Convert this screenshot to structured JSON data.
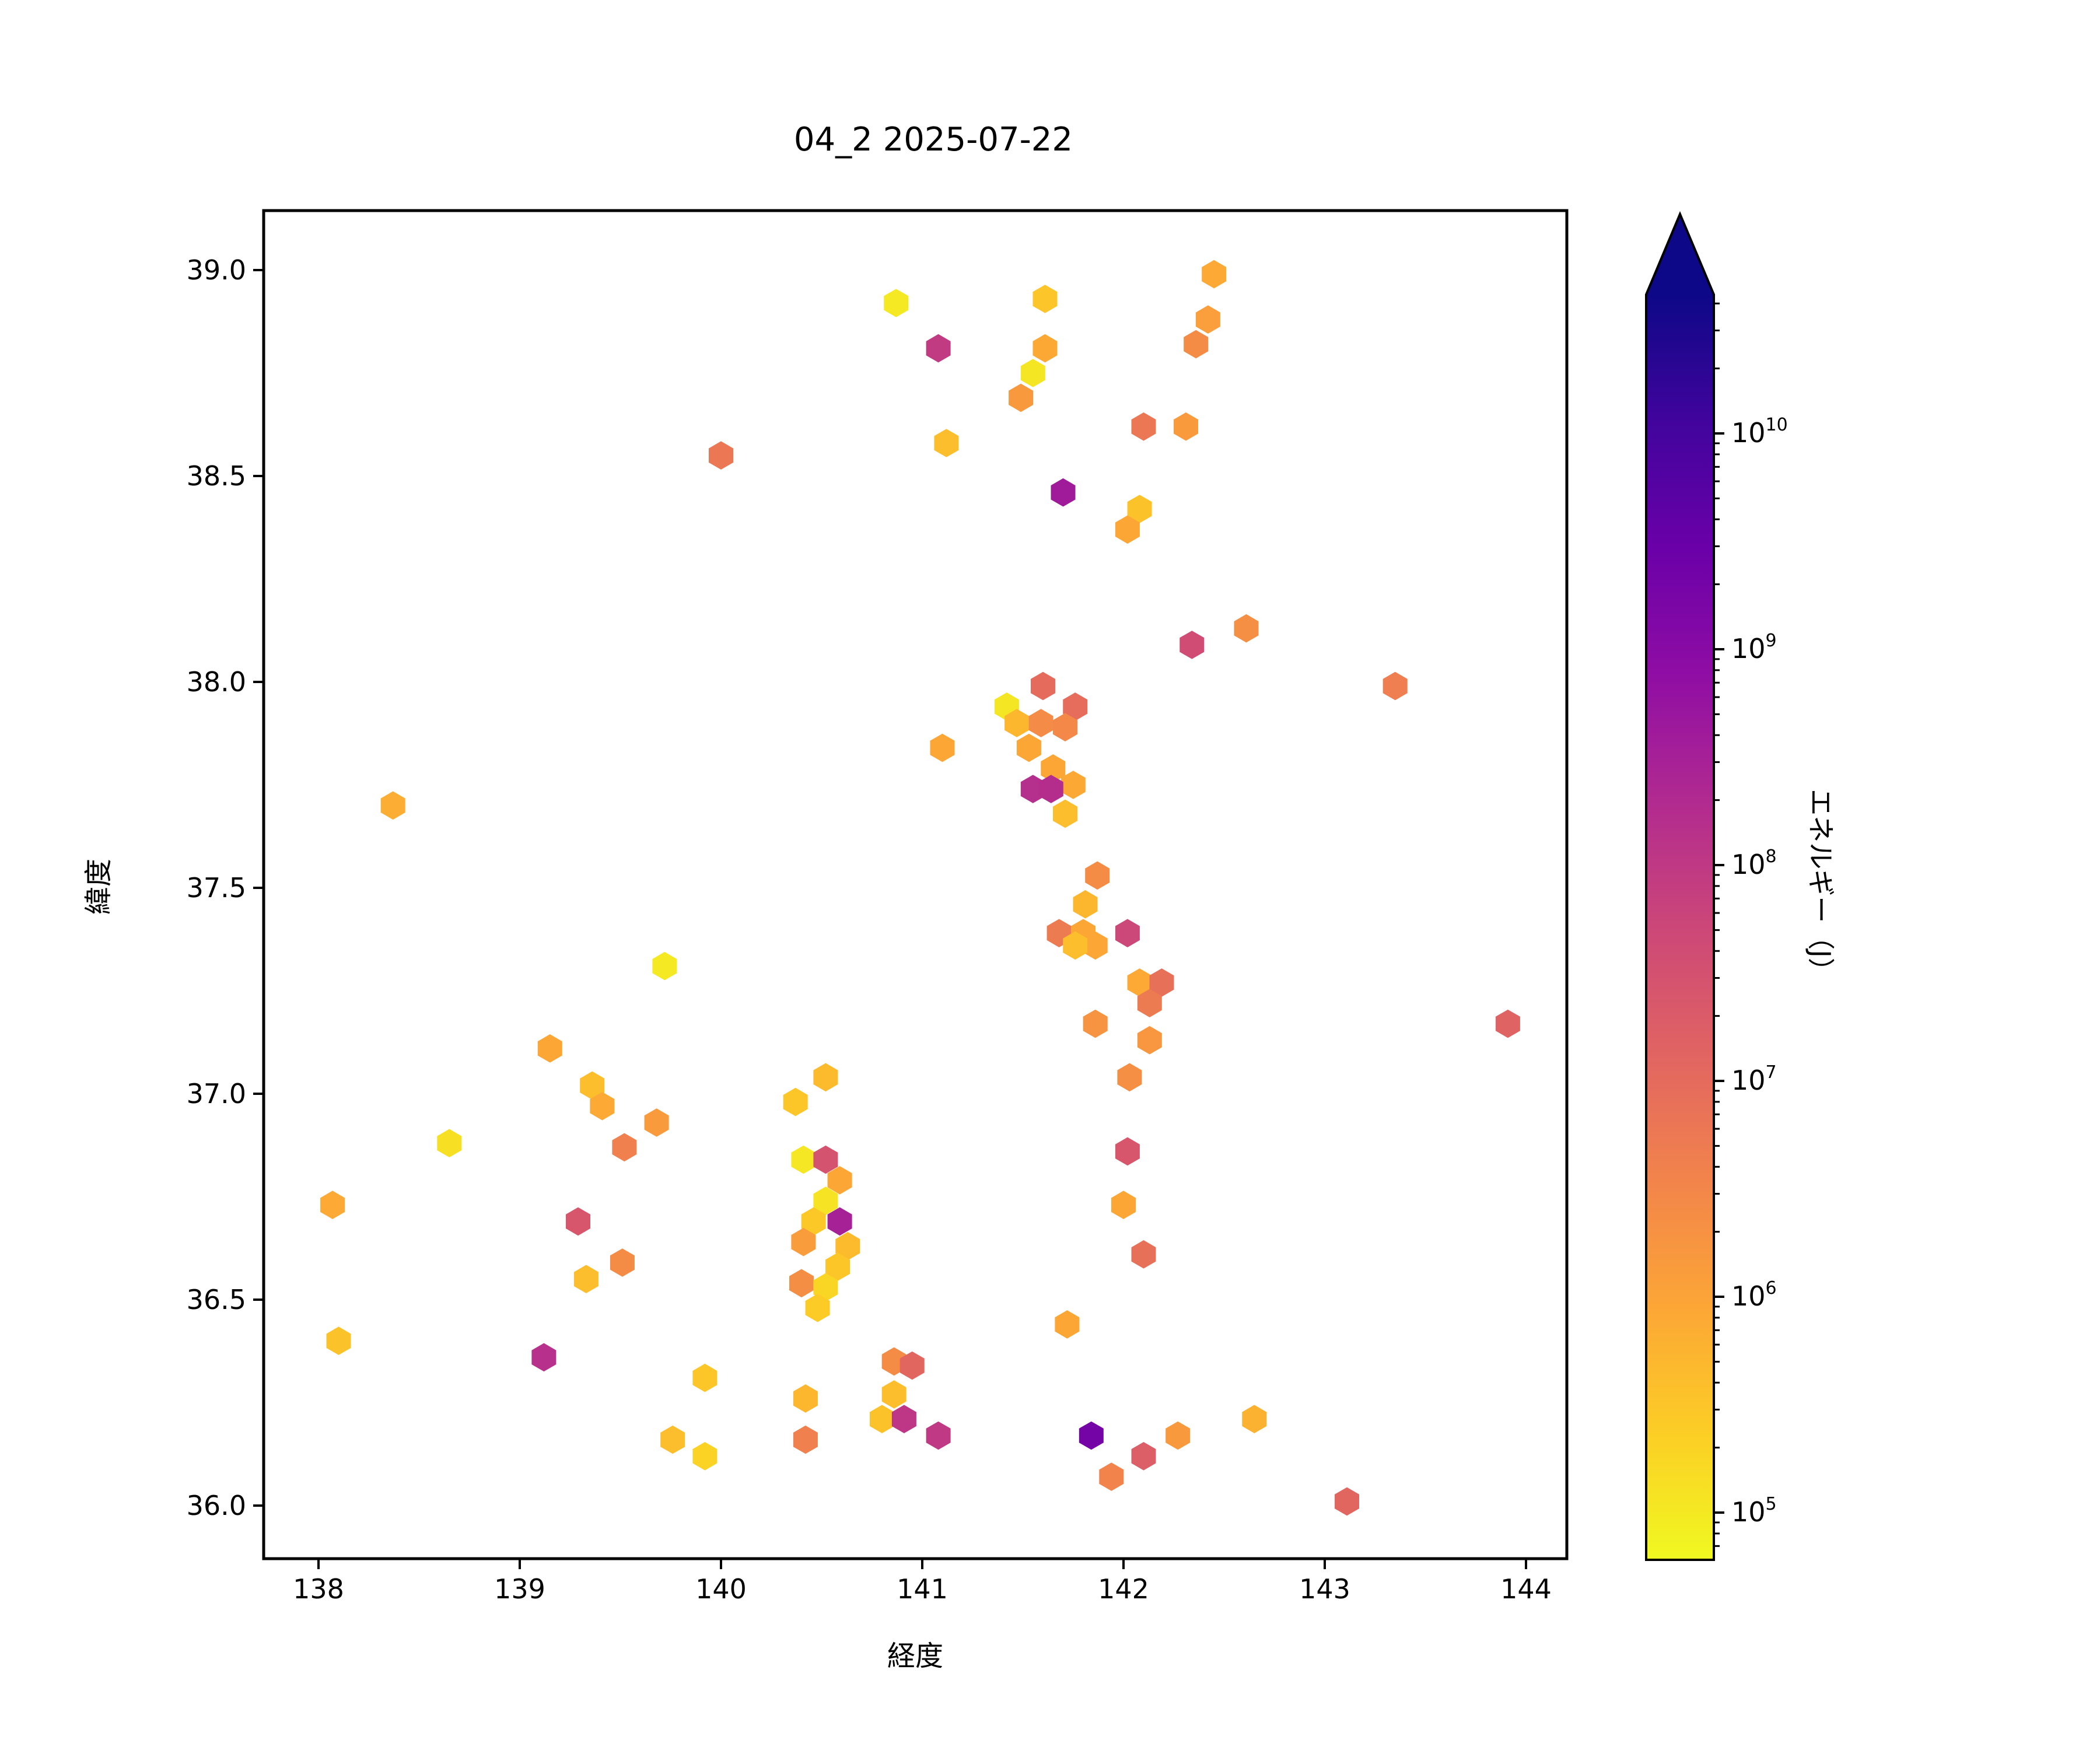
{
  "title": "04_2 2025-07-22",
  "axes": {
    "xlabel": "経度",
    "ylabel": "緯度",
    "xticks": [
      138,
      139,
      140,
      141,
      142,
      143,
      144
    ],
    "yticks": [
      36.0,
      36.5,
      37.0,
      37.5,
      38.0,
      38.5,
      39.0
    ],
    "xlim": [
      137.78,
      144.2
    ],
    "ylim": [
      35.86,
      39.14
    ]
  },
  "colorbar": {
    "label": "エネルギー（J）",
    "tick_exponents": [
      5,
      6,
      7,
      8,
      9,
      10
    ],
    "extend": "max",
    "cmap": "plasma_r",
    "log_min_exp": 4.78,
    "log_max_exp": 10.64,
    "stops_top_to_bottom": [
      "#0d0887",
      "#41049d",
      "#6a00a8",
      "#8f0da4",
      "#b12a90",
      "#cc4778",
      "#e16462",
      "#f2844b",
      "#fca636",
      "#fcce25",
      "#f0f921"
    ]
  },
  "chart_data": {
    "type": "scatter",
    "marker": "hexagon",
    "title": "04_2 2025-07-22",
    "xlabel": "経度",
    "ylabel": "緯度",
    "color_label": "エネルギー（J）",
    "color_scale": "log",
    "xlim": [
      137.78,
      144.2
    ],
    "ylim": [
      35.86,
      39.14
    ],
    "grid": false,
    "points_lon_lat_energyJ": [
      [
        140.87,
        38.92,
        100000.0
      ],
      [
        141.61,
        38.93,
        320000.0
      ],
      [
        142.45,
        38.99,
        800000.0
      ],
      [
        141.08,
        38.81,
        90000000.0
      ],
      [
        141.61,
        38.81,
        850000.0
      ],
      [
        142.42,
        38.88,
        1200000.0
      ],
      [
        142.36,
        38.82,
        2500000.0
      ],
      [
        141.55,
        38.75,
        110000.0
      ],
      [
        141.49,
        38.69,
        1500000.0
      ],
      [
        142.1,
        38.62,
        6000000.0
      ],
      [
        142.31,
        38.62,
        1400000.0
      ],
      [
        141.12,
        38.58,
        400000.0
      ],
      [
        140.0,
        38.55,
        6000000.0
      ],
      [
        141.7,
        38.46,
        400000000.0
      ],
      [
        142.08,
        38.42,
        350000.0
      ],
      [
        142.02,
        38.37,
        900000.0
      ],
      [
        142.61,
        38.13,
        2200000.0
      ],
      [
        142.34,
        38.09,
        40000000.0
      ],
      [
        143.35,
        37.99,
        4500000.0
      ],
      [
        141.6,
        37.99,
        10000000.0
      ],
      [
        141.42,
        37.94,
        110000.0
      ],
      [
        141.76,
        37.94,
        9000000.0
      ],
      [
        141.47,
        37.9,
        500000.0
      ],
      [
        141.59,
        37.9,
        2600000.0
      ],
      [
        141.71,
        37.89,
        3000000.0
      ],
      [
        141.53,
        37.84,
        900000.0
      ],
      [
        141.1,
        37.84,
        900000.0
      ],
      [
        141.65,
        37.79,
        900000.0
      ],
      [
        141.75,
        37.75,
        850000.0
      ],
      [
        141.55,
        37.74,
        160000000.0
      ],
      [
        141.64,
        37.74,
        170000000.0
      ],
      [
        141.71,
        37.68,
        400000.0
      ],
      [
        141.87,
        37.53,
        2500000.0
      ],
      [
        141.81,
        37.46,
        500000.0
      ],
      [
        141.68,
        37.39,
        5000000.0
      ],
      [
        141.8,
        37.39,
        900000.0
      ],
      [
        142.02,
        37.39,
        50000000.0
      ],
      [
        141.86,
        37.36,
        900000.0
      ],
      [
        141.76,
        37.36,
        400000.0
      ],
      [
        142.08,
        37.27,
        800000.0
      ],
      [
        142.19,
        37.27,
        8000000.0
      ],
      [
        142.13,
        37.22,
        5000000.0
      ],
      [
        141.86,
        37.17,
        1800000.0
      ],
      [
        142.13,
        37.13,
        1600000.0
      ],
      [
        142.03,
        37.04,
        2200000.0
      ],
      [
        143.91,
        37.17,
        14000000.0
      ],
      [
        142.02,
        36.86,
        25000000.0
      ],
      [
        142.0,
        36.73,
        900000.0
      ],
      [
        142.1,
        36.61,
        8000000.0
      ],
      [
        141.72,
        36.44,
        900000.0
      ],
      [
        140.52,
        37.04,
        450000.0
      ],
      [
        140.37,
        36.98,
        300000.0
      ],
      [
        140.41,
        36.84,
        105000.0
      ],
      [
        140.52,
        36.84,
        30000000.0
      ],
      [
        140.59,
        36.79,
        900000.0
      ],
      [
        140.52,
        36.74,
        120000.0
      ],
      [
        140.46,
        36.69,
        280000.0
      ],
      [
        140.59,
        36.69,
        300000000.0
      ],
      [
        140.41,
        36.64,
        1300000.0
      ],
      [
        140.63,
        36.63,
        450000.0
      ],
      [
        140.58,
        36.58,
        300000.0
      ],
      [
        140.4,
        36.54,
        2300000.0
      ],
      [
        140.52,
        36.53,
        180000.0
      ],
      [
        140.48,
        36.48,
        260000.0
      ],
      [
        138.37,
        37.7,
        700000.0
      ],
      [
        139.72,
        37.31,
        100000.0
      ],
      [
        139.15,
        37.11,
        900000.0
      ],
      [
        139.36,
        37.02,
        400000.0
      ],
      [
        139.41,
        36.97,
        800000.0
      ],
      [
        139.68,
        36.93,
        1400000.0
      ],
      [
        139.52,
        36.87,
        4000000.0
      ],
      [
        138.65,
        36.88,
        130000.0
      ],
      [
        139.29,
        36.69,
        25000000.0
      ],
      [
        139.51,
        36.59,
        2500000.0
      ],
      [
        139.33,
        36.55,
        400000.0
      ],
      [
        140.42,
        36.26,
        500000.0
      ],
      [
        140.42,
        36.16,
        4000000.0
      ],
      [
        140.86,
        36.35,
        2500000.0
      ],
      [
        140.95,
        36.34,
        12000000.0
      ],
      [
        140.86,
        36.27,
        400000.0
      ],
      [
        140.8,
        36.21,
        350000.0
      ],
      [
        140.91,
        36.21,
        110000000.0
      ],
      [
        141.08,
        36.17,
        100000000.0
      ],
      [
        141.84,
        36.17,
        2000000000.0
      ],
      [
        141.94,
        36.07,
        3500000.0
      ],
      [
        142.1,
        36.12,
        18000000.0
      ],
      [
        142.27,
        36.17,
        1500000.0
      ],
      [
        142.65,
        36.21,
        600000.0
      ],
      [
        143.11,
        36.01,
        12000000.0
      ],
      [
        138.1,
        36.4,
        350000.0
      ],
      [
        138.07,
        36.73,
        800000.0
      ],
      [
        139.12,
        36.36,
        150000000.0
      ],
      [
        139.92,
        36.31,
        300000.0
      ],
      [
        139.76,
        36.16,
        400000.0
      ],
      [
        139.92,
        36.12,
        200000.0
      ]
    ]
  }
}
